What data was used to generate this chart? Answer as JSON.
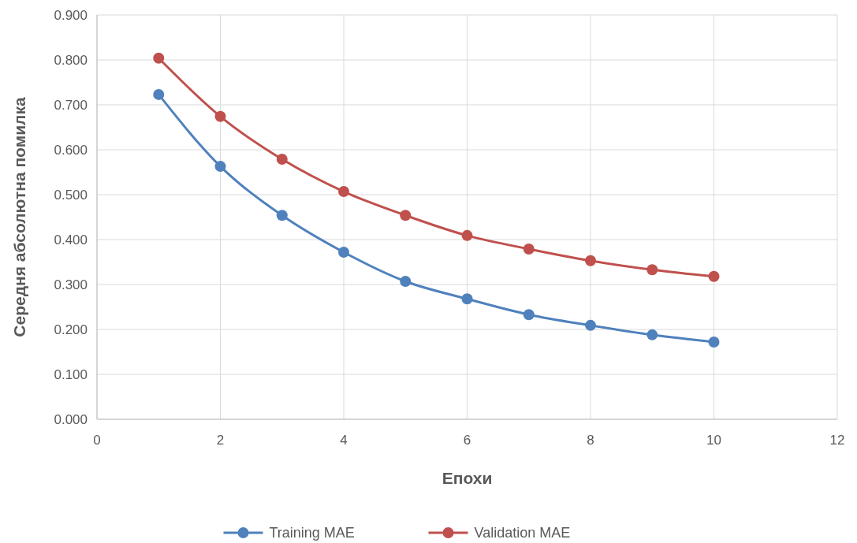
{
  "chart_data": {
    "type": "line",
    "xlabel": "Епохи",
    "ylabel": "Середня абсолютна помилка",
    "x": [
      1,
      2,
      3,
      4,
      5,
      6,
      7,
      8,
      9,
      10
    ],
    "series": [
      {
        "name": "Training MAE",
        "color": "#4f81bd",
        "values": [
          0.723,
          0.563,
          0.454,
          0.372,
          0.307,
          0.268,
          0.233,
          0.209,
          0.188,
          0.172
        ]
      },
      {
        "name": "Validation MAE",
        "color": "#c0504d",
        "values": [
          0.804,
          0.674,
          0.579,
          0.507,
          0.454,
          0.409,
          0.379,
          0.353,
          0.333,
          0.318
        ]
      }
    ],
    "xlim": [
      0,
      12
    ],
    "xticks": [
      0,
      2,
      4,
      6,
      8,
      10,
      12
    ],
    "ylim": [
      0,
      0.9
    ],
    "yticks": [
      {
        "value": 0,
        "label": "0.000"
      },
      {
        "value": 0.1,
        "label": "0.100"
      },
      {
        "value": 0.2,
        "label": "0.200"
      },
      {
        "value": 0.3,
        "label": "0.300"
      },
      {
        "value": 0.4,
        "label": "0.400"
      },
      {
        "value": 0.5,
        "label": "0.500"
      },
      {
        "value": 0.6,
        "label": "0.600"
      },
      {
        "value": 0.7,
        "label": "0.700"
      },
      {
        "value": 0.8,
        "label": "0.800"
      },
      {
        "value": 0.9,
        "label": "0.900"
      }
    ],
    "grid": true,
    "legend": "bottom",
    "marker": "circle",
    "line_style": "solid"
  }
}
